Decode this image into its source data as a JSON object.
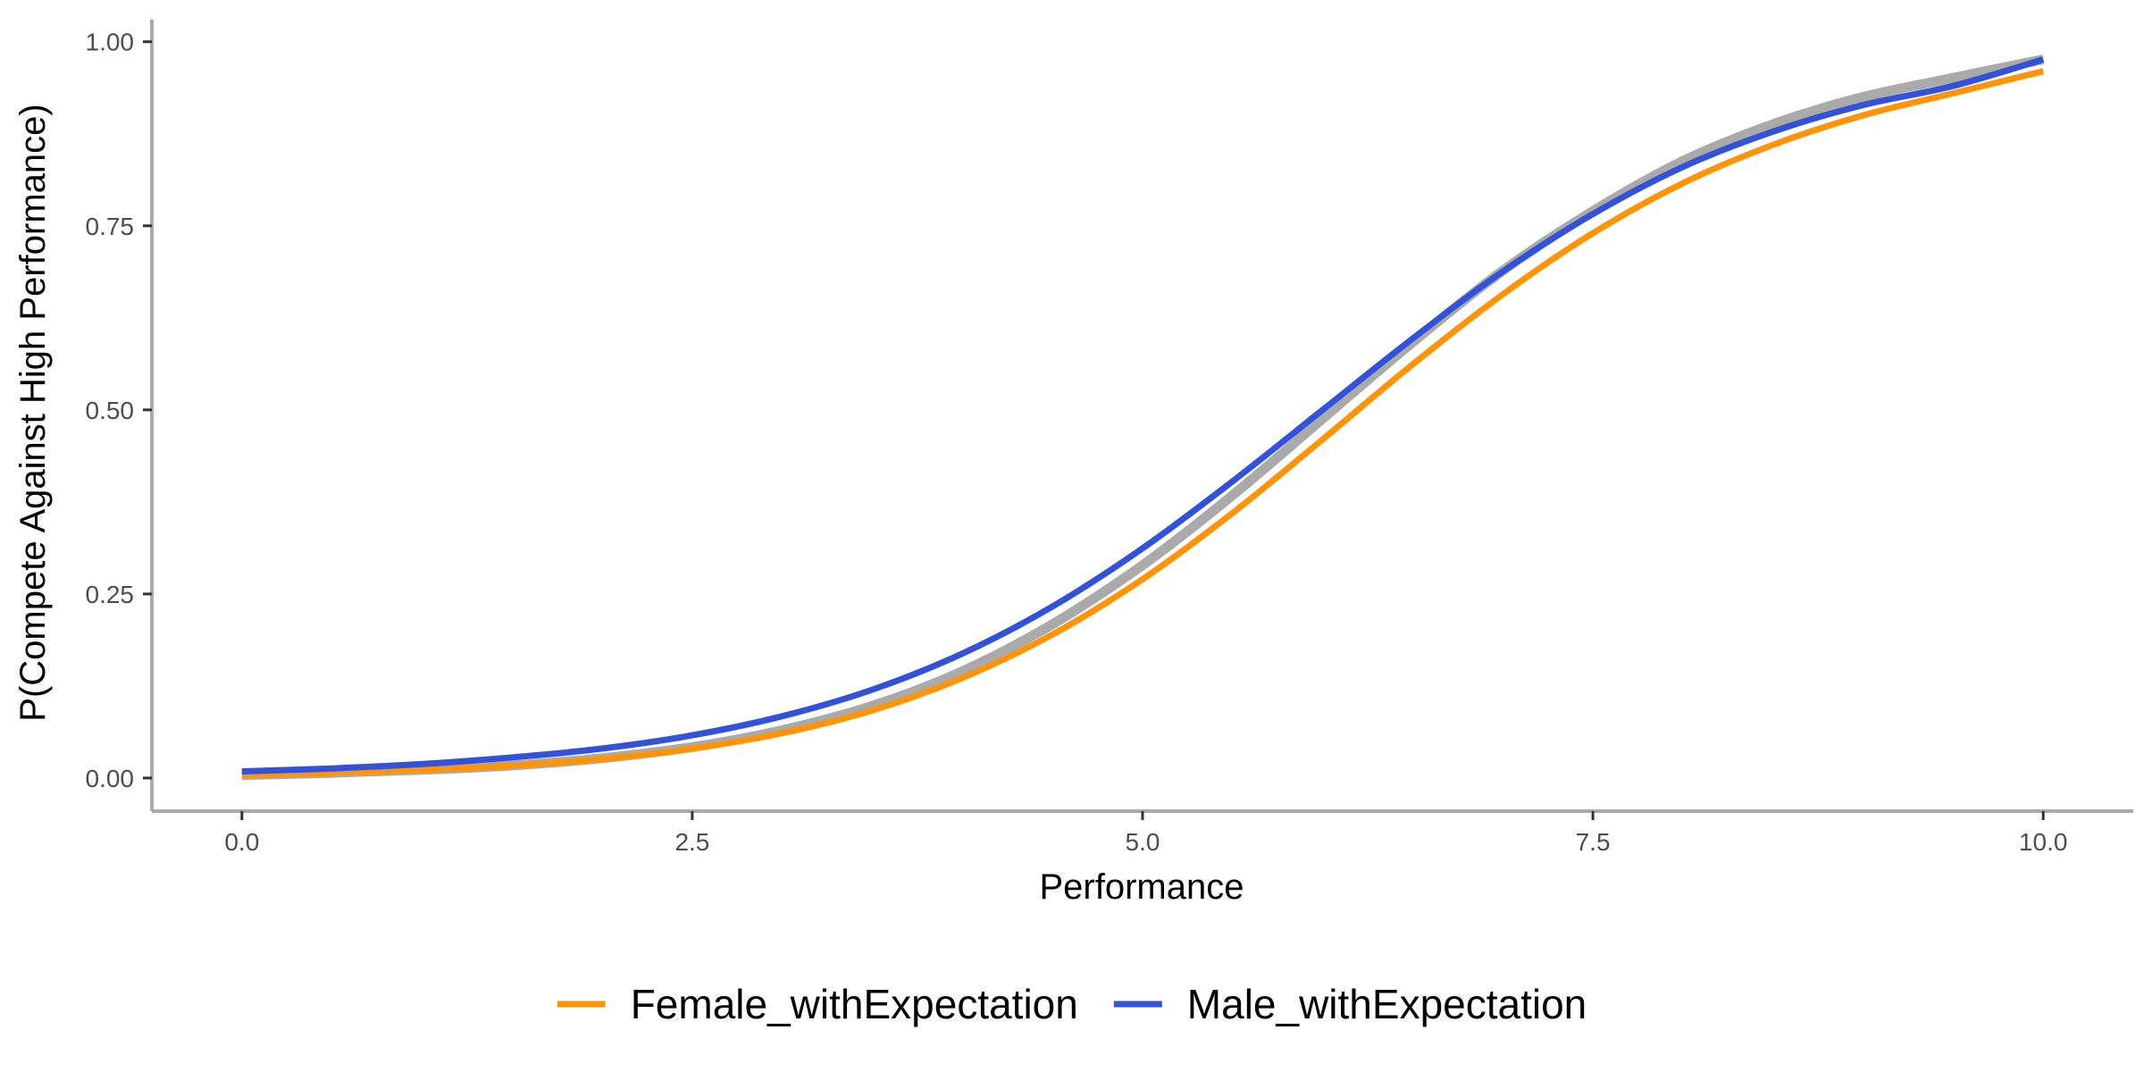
{
  "chart_data": {
    "type": "line",
    "xlabel": "Performance",
    "ylabel": "P(Compete Against High Performance)",
    "xlim": [
      -0.5,
      10.5
    ],
    "ylim": [
      -0.045,
      1.03
    ],
    "x_ticks": [
      0.0,
      2.5,
      5.0,
      7.5,
      10.0
    ],
    "x_tick_labels": [
      "0.0",
      "2.5",
      "5.0",
      "7.5",
      "10.0"
    ],
    "y_ticks": [
      0.0,
      0.25,
      0.5,
      0.75,
      1.0
    ],
    "y_tick_labels": [
      "0.00",
      "0.25",
      "0.50",
      "0.75",
      "1.00"
    ],
    "grid": false,
    "legend_position": "bottom",
    "series": [
      {
        "key": "gray",
        "color": "#aaaaaa",
        "in_legend": false,
        "x": [
          0,
          0.5,
          1,
          1.5,
          2,
          2.5,
          3,
          3.5,
          4,
          4.5,
          5,
          5.5,
          6,
          6.5,
          7,
          7.5,
          8,
          8.5,
          9,
          9.5,
          10
        ],
        "y": [
          0.004,
          0.007,
          0.011,
          0.017,
          0.027,
          0.042,
          0.065,
          0.098,
          0.145,
          0.209,
          0.289,
          0.384,
          0.488,
          0.592,
          0.689,
          0.77,
          0.838,
          0.888,
          0.925,
          0.951,
          0.976
        ]
      },
      {
        "key": "female",
        "name": "Female_withExpectation",
        "color": "#ff9408",
        "in_legend": true,
        "x": [
          0,
          0.5,
          1,
          1.5,
          2,
          2.5,
          3,
          3.5,
          4,
          4.5,
          5,
          5.5,
          6,
          6.5,
          7,
          7.5,
          8,
          8.5,
          9,
          9.5,
          10
        ],
        "y": [
          0.004,
          0.007,
          0.011,
          0.017,
          0.026,
          0.04,
          0.061,
          0.092,
          0.136,
          0.195,
          0.27,
          0.36,
          0.46,
          0.562,
          0.657,
          0.74,
          0.808,
          0.86,
          0.9,
          0.93,
          0.96
        ]
      },
      {
        "key": "male",
        "name": "Male_withExpectation",
        "color": "#3352d9",
        "in_legend": true,
        "x": [
          0,
          0.5,
          1,
          1.5,
          2,
          2.5,
          3,
          3.5,
          4,
          4.5,
          5,
          5.5,
          6,
          6.5,
          7,
          7.5,
          8,
          8.5,
          9,
          9.5,
          10
        ],
        "y": [
          0.009,
          0.013,
          0.019,
          0.028,
          0.04,
          0.058,
          0.084,
          0.12,
          0.169,
          0.233,
          0.312,
          0.403,
          0.5,
          0.597,
          0.688,
          0.766,
          0.83,
          0.878,
          0.914,
          0.94,
          0.976
        ]
      }
    ]
  }
}
